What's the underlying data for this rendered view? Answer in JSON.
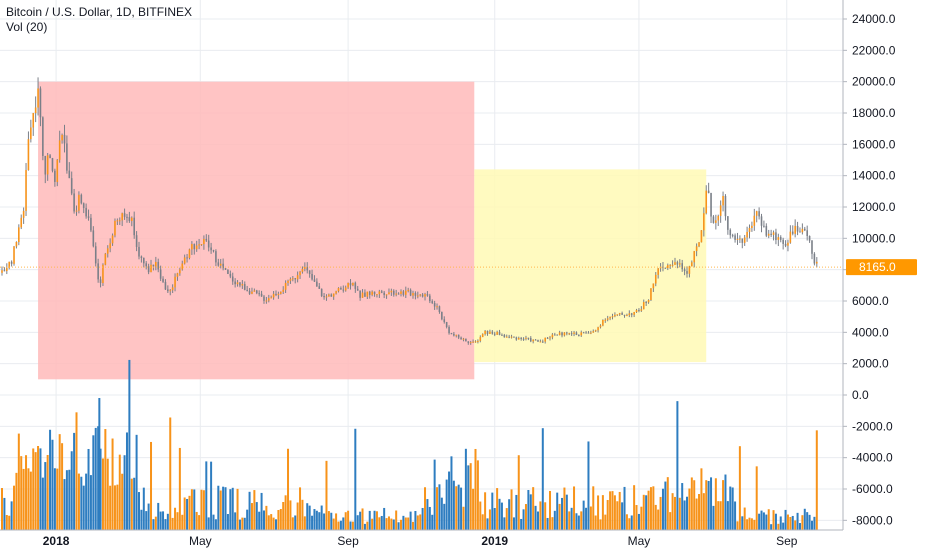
{
  "legend": {
    "title": "Bitcoin / U.S. Dollar, 1D, BITFINEX",
    "volume": "Vol (20)"
  },
  "colors": {
    "up": "#f7931a",
    "down": "#2e7dc0",
    "wick": "#7a7f88",
    "bear_zone": "#ffbaba",
    "bull_zone": "#fff9b5",
    "price_line": "#ffb74d",
    "price_tag": "#ff9800",
    "grid": "#e9ecf0",
    "axis_text": "#131722"
  },
  "current_price": "8165.0",
  "chart_data": {
    "type": "line",
    "title": "Bitcoin / U.S. Dollar, 1D, BITFINEX",
    "y_axis_ticks": [
      "24000.0",
      "22000.0",
      "20000.0",
      "18000.0",
      "16000.0",
      "14000.0",
      "12000.0",
      "10000.0",
      "8000.0",
      "6000.0",
      "4000.0",
      "2000.0",
      "0.0",
      "-2000.0",
      "-4000.0",
      "-6000.0",
      "-8000.0"
    ],
    "x_axis_ticks": [
      {
        "label": "2018",
        "date": "2018-01-01"
      },
      {
        "label": "May",
        "date": "2018-05-01"
      },
      {
        "label": "Sep",
        "date": "2018-09-01"
      },
      {
        "label": "2019",
        "date": "2019-01-01"
      },
      {
        "label": "May",
        "date": "2019-05-01"
      },
      {
        "label": "Sep",
        "date": "2019-09-01"
      }
    ],
    "xlim": [
      "2017-11-17",
      "2019-09-27"
    ],
    "ylim": [
      -8800,
      25000
    ],
    "grid": true,
    "series": [
      {
        "name": "Bitcoin / U.S. Dollar",
        "points": [
          [
            "2017-11-17",
            7800
          ],
          [
            "2017-11-25",
            8600
          ],
          [
            "2017-12-01",
            10500
          ],
          [
            "2017-12-05",
            11800
          ],
          [
            "2017-12-08",
            16000
          ],
          [
            "2017-12-12",
            17500
          ],
          [
            "2017-12-17",
            19700
          ],
          [
            "2017-12-22",
            14000
          ],
          [
            "2017-12-27",
            15500
          ],
          [
            "2017-12-31",
            14000
          ],
          [
            "2018-01-06",
            17100
          ],
          [
            "2018-01-10",
            14500
          ],
          [
            "2018-01-17",
            11000
          ],
          [
            "2018-01-20",
            12800
          ],
          [
            "2018-01-27",
            11500
          ],
          [
            "2018-02-02",
            9000
          ],
          [
            "2018-02-06",
            6900
          ],
          [
            "2018-02-10",
            8600
          ],
          [
            "2018-02-20",
            11200
          ],
          [
            "2018-03-04",
            11400
          ],
          [
            "2018-03-10",
            9200
          ],
          [
            "2018-03-18",
            7900
          ],
          [
            "2018-03-25",
            8600
          ],
          [
            "2018-04-01",
            6900
          ],
          [
            "2018-04-06",
            6600
          ],
          [
            "2018-04-12",
            7900
          ],
          [
            "2018-04-24",
            9500
          ],
          [
            "2018-05-05",
            9800
          ],
          [
            "2018-05-15",
            8600
          ],
          [
            "2018-05-25",
            7500
          ],
          [
            "2018-06-10",
            6700
          ],
          [
            "2018-06-24",
            6100
          ],
          [
            "2018-07-05",
            6600
          ],
          [
            "2018-07-18",
            7400
          ],
          [
            "2018-07-25",
            8300
          ],
          [
            "2018-08-05",
            7000
          ],
          [
            "2018-08-12",
            6200
          ],
          [
            "2018-08-25",
            6700
          ],
          [
            "2018-09-05",
            7300
          ],
          [
            "2018-09-10",
            6300
          ],
          [
            "2018-09-20",
            6500
          ],
          [
            "2018-10-05",
            6600
          ],
          [
            "2018-10-25",
            6500
          ],
          [
            "2018-11-05",
            6400
          ],
          [
            "2018-11-14",
            5600
          ],
          [
            "2018-11-20",
            4600
          ],
          [
            "2018-11-25",
            3900
          ],
          [
            "2018-12-07",
            3500
          ],
          [
            "2018-12-15",
            3300
          ],
          [
            "2018-12-24",
            4000
          ],
          [
            "2019-01-05",
            3900
          ],
          [
            "2019-01-10",
            3700
          ],
          [
            "2019-01-25",
            3600
          ],
          [
            "2019-02-07",
            3400
          ],
          [
            "2019-02-20",
            3900
          ],
          [
            "2019-03-10",
            3900
          ],
          [
            "2019-03-25",
            4000
          ],
          [
            "2019-04-02",
            4900
          ],
          [
            "2019-04-15",
            5100
          ],
          [
            "2019-04-30",
            5300
          ],
          [
            "2019-05-10",
            6300
          ],
          [
            "2019-05-15",
            7900
          ],
          [
            "2019-05-22",
            8000
          ],
          [
            "2019-06-01",
            8600
          ],
          [
            "2019-06-10",
            7800
          ],
          [
            "2019-06-18",
            9300
          ],
          [
            "2019-06-22",
            10500
          ],
          [
            "2019-06-26",
            13400
          ],
          [
            "2019-07-02",
            10800
          ],
          [
            "2019-07-10",
            12600
          ],
          [
            "2019-07-16",
            10000
          ],
          [
            "2019-07-25",
            9800
          ],
          [
            "2019-08-01",
            10400
          ],
          [
            "2019-08-06",
            11900
          ],
          [
            "2019-08-15",
            10300
          ],
          [
            "2019-08-22",
            10100
          ],
          [
            "2019-09-01",
            9700
          ],
          [
            "2019-09-05",
            10600
          ],
          [
            "2019-09-15",
            10300
          ],
          [
            "2019-09-20",
            10000
          ],
          [
            "2019-09-24",
            8500
          ],
          [
            "2019-09-27",
            8165
          ]
        ]
      }
    ],
    "annotations": [
      {
        "type": "rectangle",
        "color": "bear_zone",
        "from": "2017-12-17",
        "to": "2018-12-15",
        "y_min": 1000,
        "y_max": 20000
      },
      {
        "type": "rectangle",
        "color": "bull_zone",
        "from": "2018-12-15",
        "to": "2019-06-26",
        "y_min": 2100,
        "y_max": 14400
      }
    ],
    "current_price_line": 8165
  }
}
